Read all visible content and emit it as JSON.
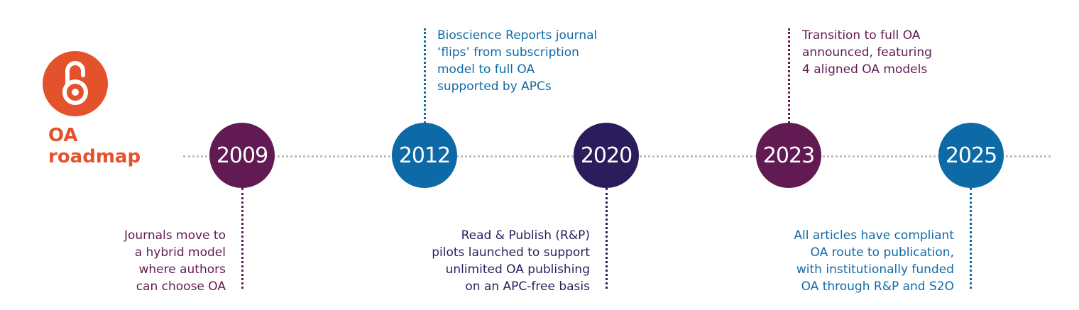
{
  "brand": {
    "line1": "OA",
    "line2": "roadmap"
  },
  "logo_icon": "open-access-lock-icon",
  "colors": {
    "orange": "#e4522b",
    "plum": "#611b52",
    "blue": "#0e6aa6",
    "navy": "#2b1d5b",
    "timeline": "#bdbdbd"
  },
  "milestones": [
    {
      "year": "2009",
      "color": "#611b52",
      "note": [
        "Journals move to",
        "a hybrid model",
        "where authors",
        "can choose OA"
      ]
    },
    {
      "year": "2012",
      "color": "#0e6aa6",
      "note": [
        "Bioscience Reports journal",
        "‘flips’ from subscription",
        "model to full OA",
        "supported by APCs"
      ]
    },
    {
      "year": "2020",
      "color": "#2b1d5b",
      "note": [
        "Read & Publish (R&P)",
        "pilots launched to support",
        "unlimited OA publishing",
        "on an APC-free basis"
      ]
    },
    {
      "year": "2023",
      "color": "#611b52",
      "note": [
        "Transition to full OA",
        "announced, featuring",
        "4 aligned OA models"
      ]
    },
    {
      "year": "2025",
      "color": "#0e6aa6",
      "note": [
        "All articles have compliant",
        "OA route to publication,",
        "with institutionally funded",
        "OA through R&P and S2O"
      ]
    }
  ]
}
